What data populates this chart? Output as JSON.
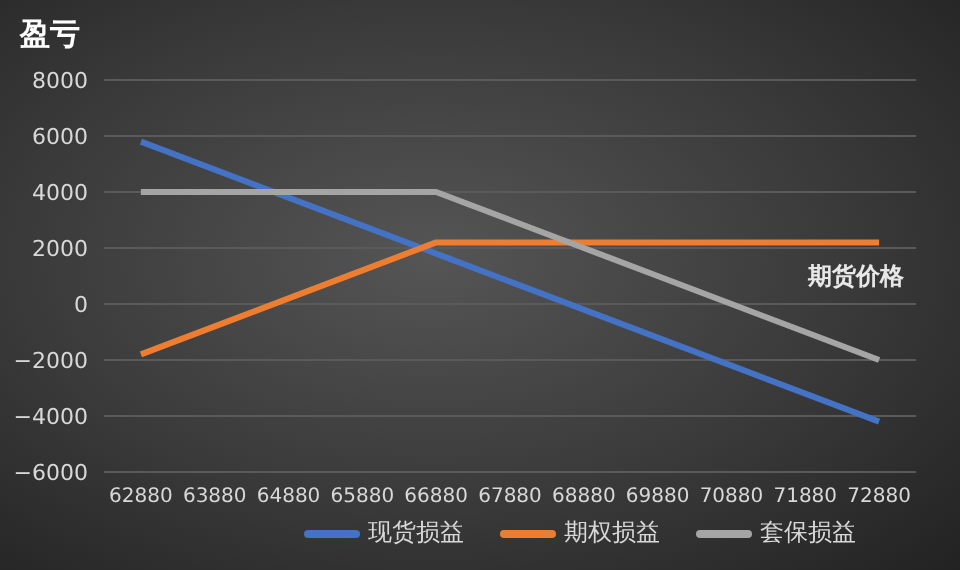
{
  "chart_data": {
    "type": "line",
    "ylabel": "盈亏",
    "xlabel": "期货价格",
    "categories": [
      "62880",
      "63880",
      "64880",
      "65880",
      "66880",
      "67880",
      "68880",
      "69880",
      "70880",
      "71880",
      "72880"
    ],
    "series": [
      {
        "name": "现货损益",
        "color": "#4472c4",
        "values": [
          5800,
          4800,
          3800,
          2800,
          1800,
          800,
          -200,
          -1200,
          -2200,
          -3200,
          -4200
        ]
      },
      {
        "name": "期权损益",
        "color": "#ed7d31",
        "values": [
          -1800,
          -800,
          200,
          1200,
          2200,
          2200,
          2200,
          2200,
          2200,
          2200,
          2200
        ]
      },
      {
        "name": "套保损益",
        "color": "#a5a5a5",
        "values": [
          4000,
          4000,
          4000,
          4000,
          4000,
          3000,
          2000,
          1000,
          0,
          -1000,
          -2000
        ]
      }
    ],
    "ylim": [
      -6000,
      8000
    ],
    "yticks": [
      -6000,
      -4000,
      -2000,
      0,
      2000,
      4000,
      6000,
      8000
    ],
    "grid": "y",
    "legend": "bottom",
    "marker": "none",
    "line_style": "solid"
  }
}
